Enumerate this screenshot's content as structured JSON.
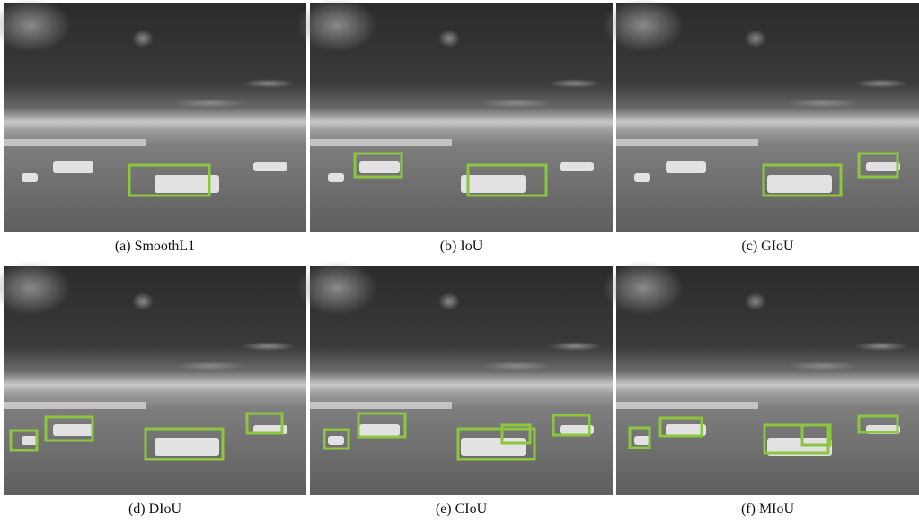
{
  "figure": {
    "panels": [
      {
        "caption": "(a) SmoothL1"
      },
      {
        "caption": "(b) IoU"
      },
      {
        "caption": "(c) GIoU"
      },
      {
        "caption": "(d) DIoU"
      },
      {
        "caption": "(e) CIoU"
      },
      {
        "caption": "(f) MIoU"
      }
    ]
  }
}
